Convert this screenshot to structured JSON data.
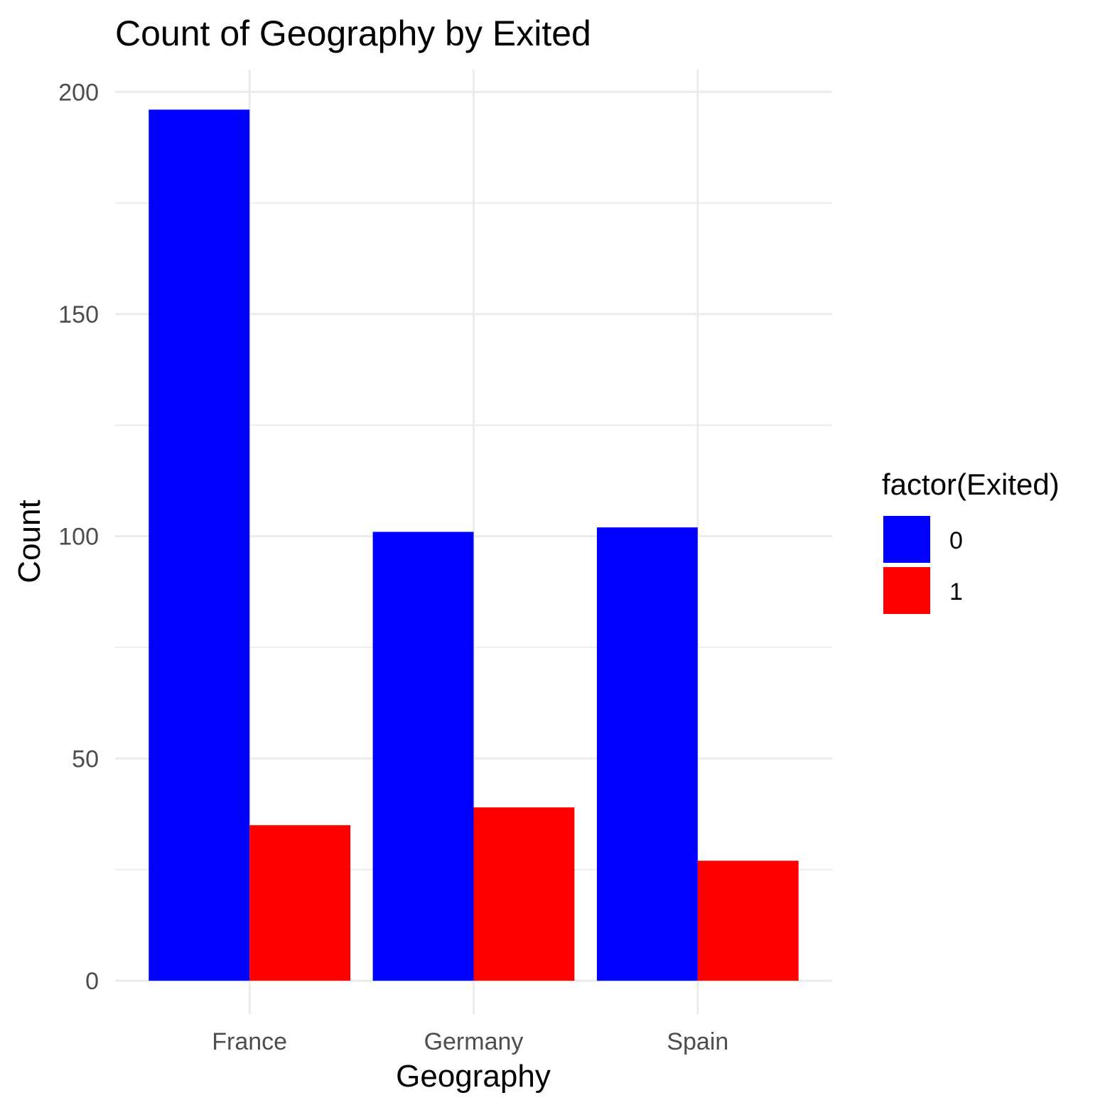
{
  "chart_data": {
    "type": "bar",
    "title": "Count of Geography by Exited",
    "xlabel": "Geography",
    "ylabel": "Count",
    "categories": [
      "France",
      "Germany",
      "Spain"
    ],
    "series": [
      {
        "name": "0",
        "color": "#0000ff",
        "values": [
          196,
          101,
          102
        ]
      },
      {
        "name": "1",
        "color": "#ff0000",
        "values": [
          35,
          39,
          27
        ]
      }
    ],
    "ylim": [
      -7.5,
      205
    ],
    "yticks": [
      0,
      50,
      100,
      150,
      200
    ],
    "yminor": [
      25,
      75,
      125,
      175
    ],
    "grid": true,
    "legend": {
      "title": "factor(Exited)",
      "position": "right"
    }
  }
}
